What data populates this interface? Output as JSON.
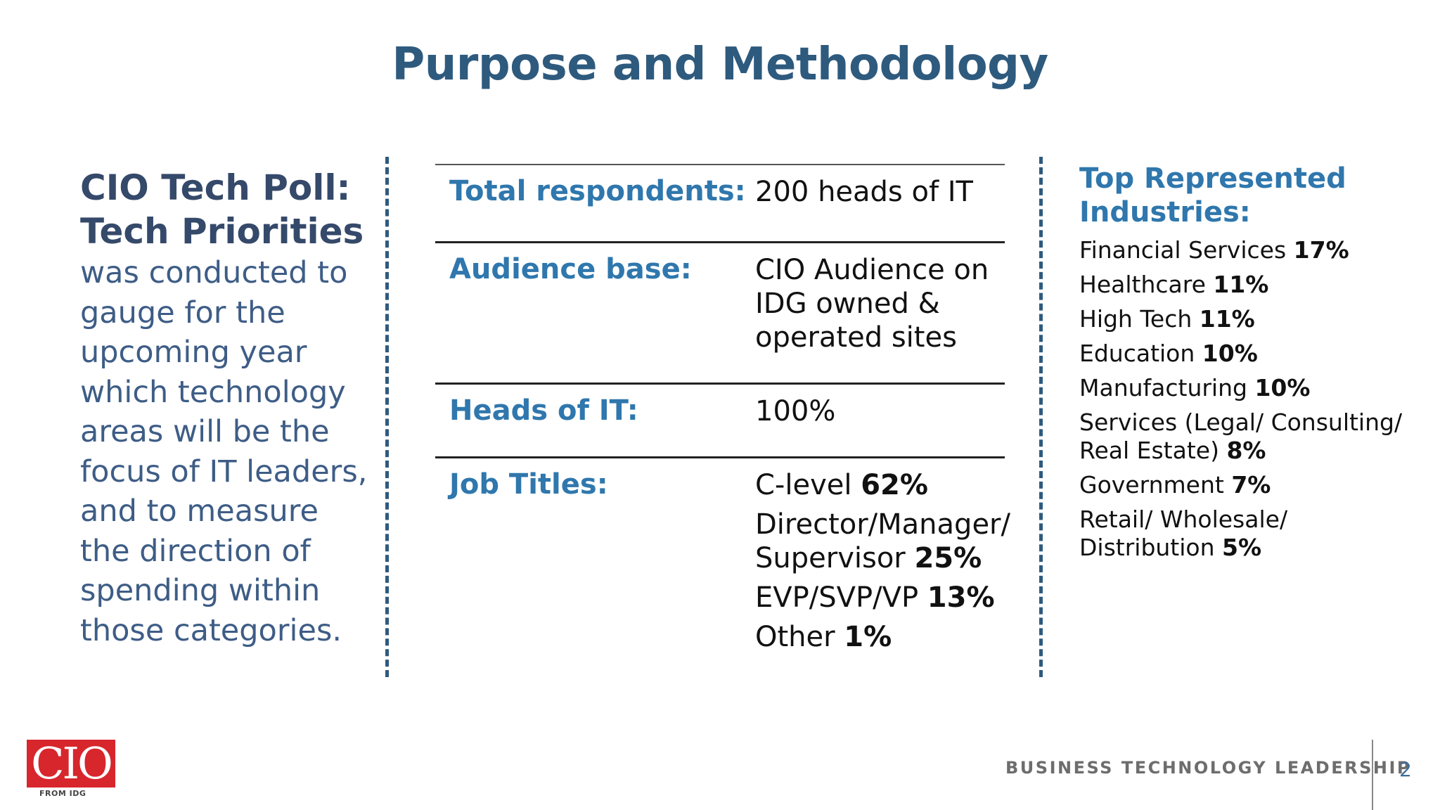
{
  "title": "Purpose and Methodology",
  "intro": {
    "heading_line1": "CIO Tech Poll:",
    "heading_line2": "Tech Priorities",
    "body": "was conducted to gauge for the upcoming year which technology areas will be the focus of IT leaders, and to measure the direction of spending within those categories."
  },
  "table": {
    "total_respondents": {
      "label": "Total respondents:",
      "value": "200 heads of IT"
    },
    "audience_base": {
      "label": "Audience base:",
      "value": "CIO Audience on IDG owned & operated sites"
    },
    "heads_of_it": {
      "label": "Heads of IT:",
      "value": "100%"
    },
    "job_titles": {
      "label": "Job Titles:",
      "items": [
        {
          "name": "C-level",
          "pct": "62%"
        },
        {
          "name": "Director/Manager/ Supervisor",
          "pct": "25%"
        },
        {
          "name": "EVP/SVP/VP",
          "pct": "13%"
        },
        {
          "name": "Other",
          "pct": "1%"
        }
      ]
    }
  },
  "industries": {
    "heading": "Top Represented Industries:",
    "items": [
      {
        "name": "Financial Services",
        "pct": "17%"
      },
      {
        "name": "Healthcare",
        "pct": "11%"
      },
      {
        "name": "High Tech",
        "pct": "11%"
      },
      {
        "name": "Education",
        "pct": "10%"
      },
      {
        "name": "Manufacturing",
        "pct": "10%"
      },
      {
        "name": "Services (Legal/ Consulting/ Real Estate)",
        "pct": "8%"
      },
      {
        "name": "Government",
        "pct": "7%"
      },
      {
        "name": "Retail/ Wholesale/ Distribution",
        "pct": "5%"
      }
    ]
  },
  "footer": {
    "logo_text": "CIO",
    "logo_sub": "FROM IDG",
    "tagline": "BUSINESS TECHNOLOGY LEADERSHIP",
    "page_number": "2"
  },
  "colors": {
    "title": "#2e5a7e",
    "label_blue": "#2f77ad",
    "logo_red": "#d7262c"
  }
}
